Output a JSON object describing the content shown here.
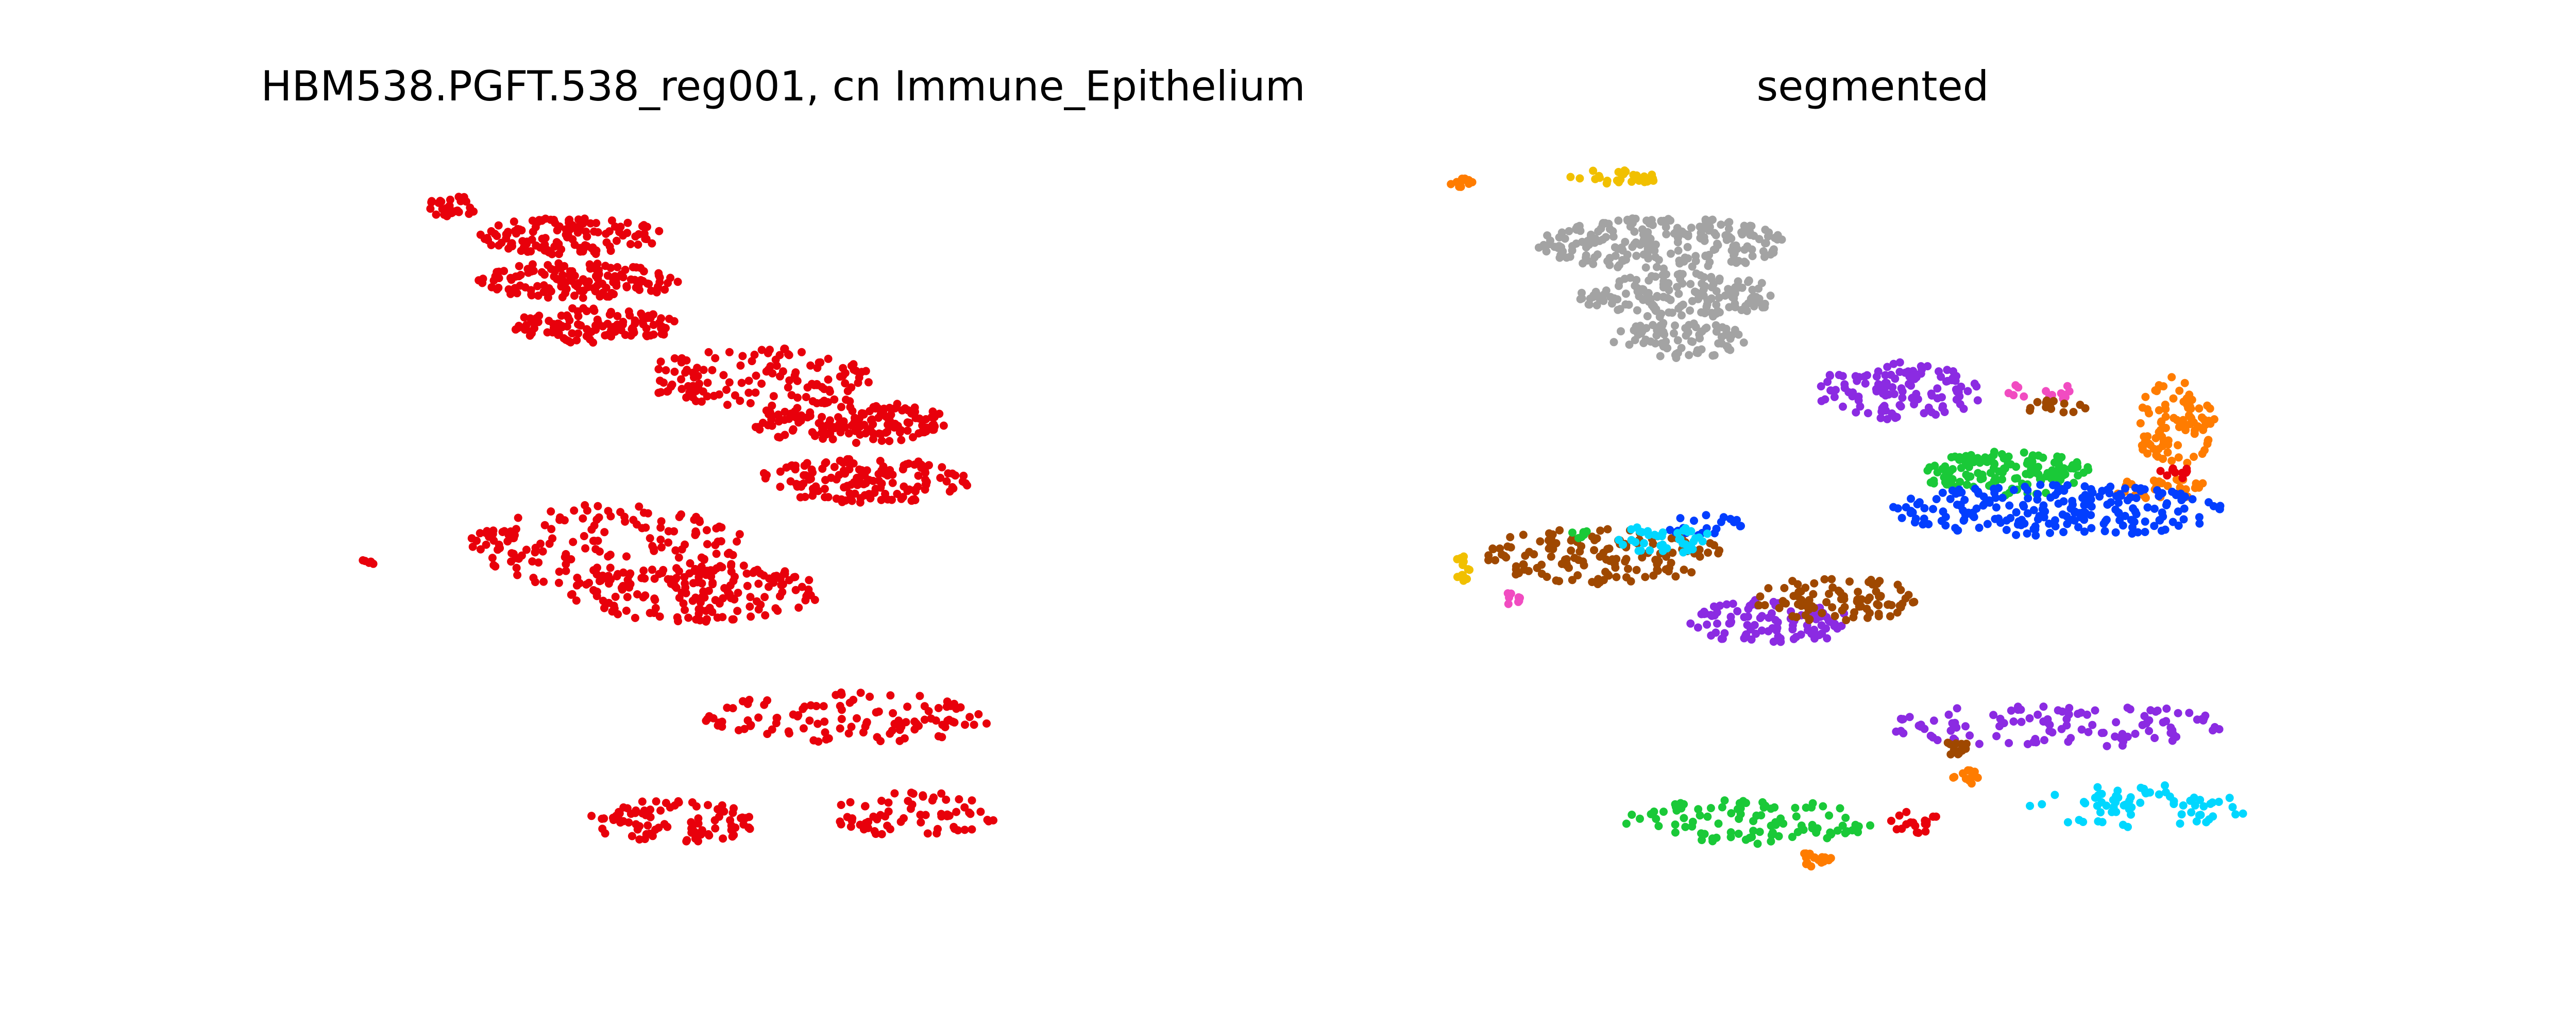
{
  "figure": {
    "panels": [
      {
        "title": "HBM538.PGFT.538_reg001, cn Immune_Epithelium"
      },
      {
        "title": "segmented"
      }
    ]
  },
  "chart_data": [
    {
      "type": "scatter",
      "title": "HBM538.PGFT.538_reg001, cn Immune_Epithelium",
      "xlabel": "",
      "ylabel": "",
      "axes": "off",
      "grid": false,
      "xlim": [
        0,
        100
      ],
      "ylim": [
        0,
        100
      ],
      "description_units": "approximate spatial units (axes hidden)",
      "series": [
        {
          "name": "Immune_Epithelium",
          "color": "#e8000b",
          "regions": [
            {
              "cx": 11,
              "cy": 93,
              "rx": 3,
              "ry": 1.5,
              "n": 30
            },
            {
              "cx": 25,
              "cy": 89,
              "rx": 11,
              "ry": 2.5,
              "n": 130
            },
            {
              "cx": 26,
              "cy": 83,
              "rx": 12,
              "ry": 2.5,
              "n": 140
            },
            {
              "cx": 28,
              "cy": 77,
              "rx": 10,
              "ry": 2.5,
              "n": 110
            },
            {
              "cx": 47,
              "cy": 70,
              "rx": 14,
              "ry": 4,
              "n": 120
            },
            {
              "cx": 58,
              "cy": 64,
              "rx": 12,
              "ry": 3,
              "n": 160
            },
            {
              "cx": 60,
              "cy": 56,
              "rx": 13,
              "ry": 3,
              "n": 150
            },
            {
              "cx": 30,
              "cy": 47,
              "rx": 16,
              "ry": 6,
              "n": 150
            },
            {
              "cx": 40,
              "cy": 41,
              "rx": 15,
              "ry": 4,
              "n": 160
            },
            {
              "cx": 58,
              "cy": 24,
              "rx": 17,
              "ry": 3.5,
              "n": 110
            },
            {
              "cx": 37,
              "cy": 10,
              "rx": 10,
              "ry": 3,
              "n": 90
            },
            {
              "cx": 66,
              "cy": 11,
              "rx": 10,
              "ry": 3,
              "n": 70
            },
            {
              "cx": 1,
              "cy": 45,
              "rx": 1,
              "ry": 1,
              "n": 6
            },
            {
              "cx": 16,
              "cy": 48,
              "rx": 3,
              "ry": 2,
              "n": 16
            }
          ]
        }
      ]
    },
    {
      "type": "scatter",
      "title": "segmented",
      "xlabel": "",
      "ylabel": "",
      "axes": "off",
      "grid": false,
      "xlim": [
        0,
        100
      ],
      "ylim": [
        0,
        100
      ],
      "description_units": "approximate spatial units (axes hidden)",
      "series": [
        {
          "name": "segment gray",
          "color": "#a3a3a3",
          "regions": [
            {
              "cx": 25,
              "cy": 88,
              "rx": 15,
              "ry": 3.5,
              "n": 220
            },
            {
              "cx": 27,
              "cy": 81,
              "rx": 12,
              "ry": 3,
              "n": 160
            },
            {
              "cx": 27,
              "cy": 75,
              "rx": 8,
              "ry": 2.5,
              "n": 80
            }
          ]
        },
        {
          "name": "segment orange",
          "color": "#ff7c00",
          "regions": [
            {
              "cx": 1,
              "cy": 96,
              "rx": 1.5,
              "ry": 0.8,
              "n": 10
            },
            {
              "cx": 86,
              "cy": 64,
              "rx": 5,
              "ry": 6,
              "n": 90
            },
            {
              "cx": 84,
              "cy": 55,
              "rx": 6,
              "ry": 1.5,
              "n": 30
            },
            {
              "cx": 61,
              "cy": 16,
              "rx": 2,
              "ry": 1,
              "n": 12
            },
            {
              "cx": 43,
              "cy": 5,
              "rx": 3,
              "ry": 1,
              "n": 16
            }
          ]
        },
        {
          "name": "segment yellow",
          "color": "#f1c000",
          "regions": [
            {
              "cx": 20,
              "cy": 97,
              "rx": 6,
              "ry": 1,
              "n": 28
            },
            {
              "cx": 1,
              "cy": 44,
              "rx": 1,
              "ry": 2,
              "n": 14
            }
          ]
        },
        {
          "name": "segment purple",
          "color": "#8b2be2",
          "regions": [
            {
              "cx": 53,
              "cy": 68,
              "rx": 10,
              "ry": 4,
              "n": 120
            },
            {
              "cx": 38,
              "cy": 37,
              "rx": 10,
              "ry": 3,
              "n": 100
            },
            {
              "cx": 72,
              "cy": 23,
              "rx": 20,
              "ry": 3,
              "n": 110
            }
          ]
        },
        {
          "name": "segment pink",
          "color": "#f14cc1",
          "regions": [
            {
              "cx": 70,
              "cy": 68,
              "rx": 4,
              "ry": 1.5,
              "n": 14
            },
            {
              "cx": 7,
              "cy": 40,
              "rx": 1,
              "ry": 1,
              "n": 8
            }
          ]
        },
        {
          "name": "segment brown",
          "color": "#9f4800",
          "regions": [
            {
              "cx": 72,
              "cy": 66,
              "rx": 4,
              "ry": 1,
              "n": 16
            },
            {
              "cx": 18,
              "cy": 46,
              "rx": 14,
              "ry": 4,
              "n": 140
            },
            {
              "cx": 46,
              "cy": 40,
              "rx": 10,
              "ry": 3,
              "n": 90
            },
            {
              "cx": 60,
              "cy": 20,
              "rx": 2,
              "ry": 1,
              "n": 12
            }
          ]
        },
        {
          "name": "segment green",
          "color": "#1ac938",
          "regions": [
            {
              "cx": 66,
              "cy": 57,
              "rx": 10,
              "ry": 3,
              "n": 140
            },
            {
              "cx": 35,
              "cy": 10,
              "rx": 15,
              "ry": 3,
              "n": 100
            },
            {
              "cx": 15,
              "cy": 49,
              "rx": 1,
              "ry": 1,
              "n": 6
            }
          ]
        },
        {
          "name": "segment red",
          "color": "#e8000b",
          "regions": [
            {
              "cx": 86,
              "cy": 57,
              "rx": 2,
              "ry": 1,
              "n": 10
            },
            {
              "cx": 55,
              "cy": 10,
              "rx": 3,
              "ry": 1.5,
              "n": 18
            }
          ]
        },
        {
          "name": "segment blue",
          "color": "#023eff",
          "regions": [
            {
              "cx": 72,
              "cy": 52,
              "rx": 20,
              "ry": 3.5,
              "n": 220
            },
            {
              "cx": 30,
              "cy": 50,
              "rx": 5,
              "ry": 1.5,
              "n": 20
            }
          ]
        },
        {
          "name": "segment cyan",
          "color": "#00d7ff",
          "regions": [
            {
              "cx": 25,
              "cy": 48,
              "rx": 6,
              "ry": 2,
              "n": 40
            },
            {
              "cx": 82,
              "cy": 12,
              "rx": 14,
              "ry": 3,
              "n": 70
            }
          ]
        }
      ]
    }
  ]
}
